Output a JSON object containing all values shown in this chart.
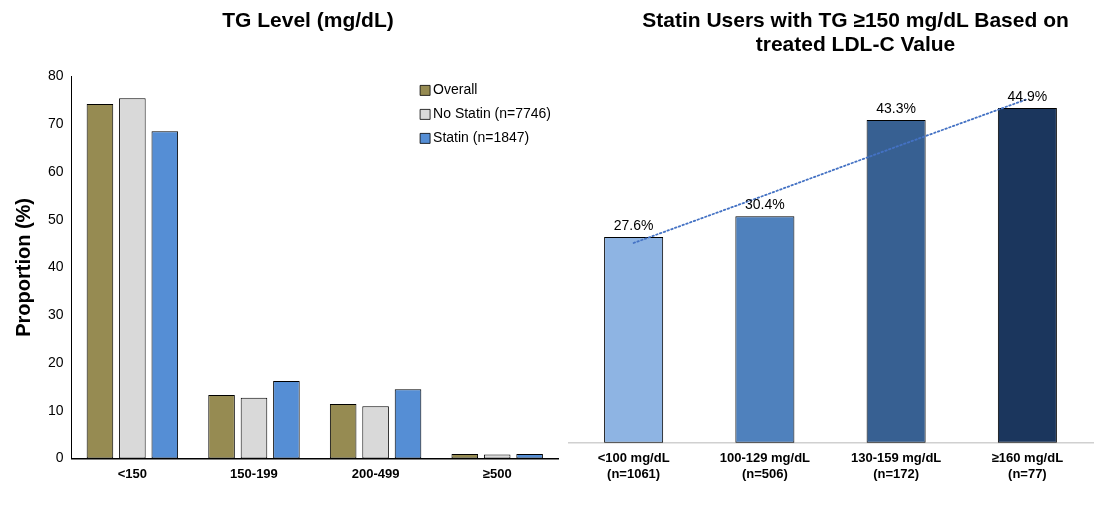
{
  "chart_data": [
    {
      "type": "bar",
      "title": "TG Level (mg/dL)",
      "ylabel": "Proportion (%)",
      "categories": [
        "<150",
        "150-199",
        "200-499",
        "≥500"
      ],
      "series": [
        {
          "name": "Overall",
          "color": "#968b52",
          "values": [
            74.2,
            13.3,
            11.4,
            0.9
          ]
        },
        {
          "name": "No Statin (n=7746)",
          "color": "#d9d9d9",
          "values": [
            75.4,
            12.7,
            10.9,
            0.8
          ]
        },
        {
          "name": "Statin (n=1847)",
          "color": "#558ed5",
          "values": [
            68.5,
            16.2,
            14.5,
            0.9
          ]
        }
      ],
      "ylim": [
        0,
        80
      ],
      "yticks": [
        0,
        10,
        20,
        30,
        40,
        50,
        60,
        70,
        80
      ],
      "grid": false,
      "legend": "top right"
    },
    {
      "type": "bar",
      "title": "Statin Users with TG ≥150 mg/dL Based on treated LDL-C Value",
      "relative": false,
      "categories": [
        "<100 mg/dL\n(n=1061)",
        "100-129 mg/dL\n(n=506)",
        "130-159 mg/dL\n(n=172)",
        "≥160 mg/dL\n(n=77)"
      ],
      "series": [
        {
          "colors": [
            "#8eb4e3",
            "#4f81bd",
            "#376092",
            "#1b365d"
          ],
          "values": [
            27.6,
            30.4,
            43.3,
            44.9
          ],
          "value_labels": [
            "27.6%",
            "30.4%",
            "43.3%",
            "44.9%"
          ]
        },
        {
          "type": "line",
          "color": "#4472c4",
          "line_style": "dotted",
          "marker": "none",
          "values": [
            26.8,
            33.2,
            39.7,
            46.1
          ]
        }
      ],
      "grid": false,
      "legend": false,
      "tick_labels": "x"
    }
  ]
}
